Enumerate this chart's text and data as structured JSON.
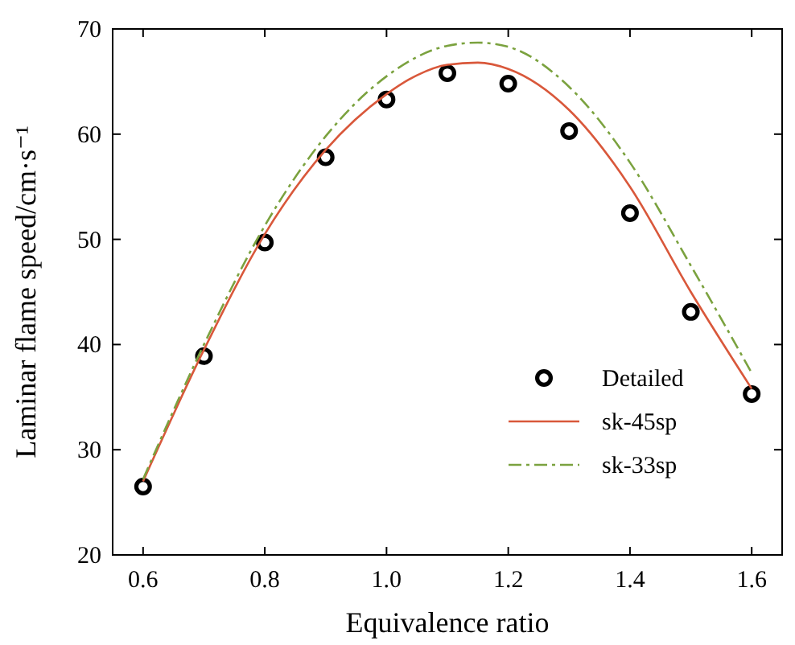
{
  "chart_data": {
    "type": "line",
    "xlabel": "Equivalence ratio",
    "ylabel": "Laminar flame speed/cm·s⁻¹",
    "xlim": [
      0.55,
      1.65
    ],
    "ylim": [
      20,
      70
    ],
    "xticks": [
      {
        "value": 0.6,
        "label": "0.6"
      },
      {
        "value": 0.8,
        "label": "0.8"
      },
      {
        "value": 1.0,
        "label": "1.0"
      },
      {
        "value": 1.2,
        "label": "1.2"
      },
      {
        "value": 1.4,
        "label": "1.4"
      },
      {
        "value": 1.6,
        "label": "1.6"
      }
    ],
    "yticks": [
      20,
      30,
      40,
      50,
      60,
      70
    ],
    "grid": false,
    "legend": "bottom right",
    "series": [
      {
        "name": "Detailed",
        "type": "scatter",
        "marker": "circle",
        "color": "#000000",
        "x": [
          0.6,
          0.7,
          0.8,
          0.9,
          1.0,
          1.1,
          1.2,
          1.3,
          1.4,
          1.5,
          1.6
        ],
        "values": [
          26.5,
          38.9,
          49.7,
          57.8,
          63.3,
          65.8,
          64.8,
          60.3,
          52.5,
          43.1,
          35.3
        ]
      },
      {
        "name": "sk-45sp",
        "line_style": "solid",
        "color": "#d9583b",
        "x": [
          0.6,
          0.7,
          0.8,
          0.9,
          1.0,
          1.05,
          1.1,
          1.15,
          1.2,
          1.3,
          1.4,
          1.5,
          1.6
        ],
        "values": [
          27,
          39.5,
          50.5,
          58.5,
          63.8,
          65.6,
          66.6,
          66.8,
          66.2,
          62.3,
          55,
          45,
          35.8
        ]
      },
      {
        "name": "sk-33sp",
        "line_style": "dashed",
        "color": "#7ba23f",
        "x": [
          0.6,
          0.7,
          0.8,
          0.9,
          1.0,
          1.1,
          1.15,
          1.2,
          1.3,
          1.4,
          1.5,
          1.6
        ],
        "values": [
          27.2,
          40,
          51.3,
          59.8,
          65.5,
          68.4,
          68.7,
          68.3,
          64.5,
          57.3,
          47.5,
          37.3
        ]
      }
    ]
  }
}
